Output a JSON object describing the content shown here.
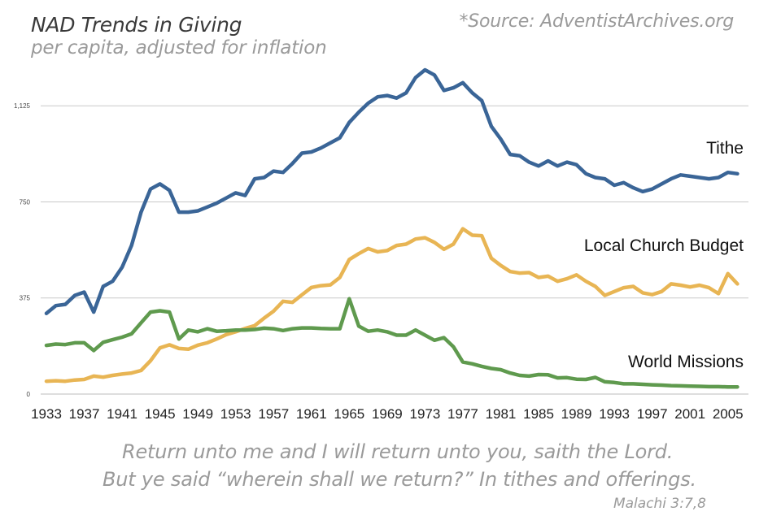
{
  "header": {
    "title": "NAD Trends in Giving",
    "subtitle": "per capita, adjusted for inflation",
    "source": "*Source: AdventistArchives.org"
  },
  "quote": {
    "line1": "Return unto me and I will return unto you, saith the Lord.",
    "line2": "But ye said “wherein shall we return?” In tithes and offerings.",
    "citation": "Malachi 3:7,8"
  },
  "colors": {
    "tithe": "#3a6597",
    "local": "#e8b554",
    "missions": "#5f9a4e",
    "grid": "#c9c9c9"
  },
  "chart_data": {
    "type": "line",
    "title": "NAD Trends in Giving",
    "subtitle": "per capita, adjusted for inflation",
    "xlabel": "",
    "ylabel": "",
    "xlim": [
      1933,
      2007
    ],
    "ylim": [
      0,
      1300
    ],
    "yticks": [
      0,
      375,
      750,
      1125
    ],
    "ytick_labels": [
      "0",
      "375",
      "750",
      "1,125"
    ],
    "xtick_labels": [
      "1933",
      "1937",
      "1941",
      "1945",
      "1949",
      "1953",
      "1957",
      "1961",
      "1965",
      "1969",
      "1973",
      "1977",
      "1981",
      "1985",
      "1989",
      "1993",
      "1997",
      "2001",
      "2005"
    ],
    "grid": true,
    "x": [
      1933,
      1934,
      1935,
      1936,
      1937,
      1938,
      1939,
      1940,
      1941,
      1942,
      1943,
      1944,
      1945,
      1946,
      1947,
      1948,
      1949,
      1950,
      1951,
      1952,
      1953,
      1954,
      1955,
      1956,
      1957,
      1958,
      1959,
      1960,
      1961,
      1962,
      1963,
      1964,
      1965,
      1966,
      1967,
      1968,
      1969,
      1970,
      1971,
      1972,
      1973,
      1974,
      1975,
      1976,
      1977,
      1978,
      1979,
      1980,
      1981,
      1982,
      1983,
      1984,
      1985,
      1986,
      1987,
      1988,
      1989,
      1990,
      1991,
      1992,
      1993,
      1994,
      1995,
      1996,
      1997,
      1998,
      1999,
      2000,
      2001,
      2002,
      2003,
      2004,
      2005,
      2006
    ],
    "series": [
      {
        "name": "Tithe",
        "values": [
          315,
          345,
          350,
          385,
          398,
          320,
          420,
          440,
          495,
          580,
          710,
          800,
          820,
          795,
          710,
          710,
          715,
          730,
          745,
          765,
          785,
          775,
          840,
          845,
          870,
          865,
          900,
          940,
          945,
          960,
          980,
          1000,
          1060,
          1100,
          1135,
          1160,
          1165,
          1155,
          1175,
          1235,
          1265,
          1245,
          1185,
          1195,
          1215,
          1175,
          1145,
          1045,
          995,
          935,
          930,
          905,
          890,
          910,
          890,
          905,
          895,
          860,
          845,
          840,
          815,
          825,
          805,
          790,
          800,
          820,
          840,
          855,
          850,
          845,
          840,
          845,
          865,
          860
        ]
      },
      {
        "name": "Local Church Budget",
        "values": [
          50,
          52,
          50,
          55,
          57,
          70,
          66,
          73,
          78,
          82,
          92,
          130,
          180,
          192,
          178,
          175,
          191,
          200,
          215,
          232,
          243,
          256,
          267,
          296,
          323,
          362,
          358,
          387,
          416,
          423,
          426,
          455,
          525,
          548,
          568,
          555,
          560,
          580,
          585,
          605,
          610,
          592,
          565,
          585,
          645,
          620,
          618,
          530,
          502,
          478,
          472,
          474,
          455,
          460,
          440,
          450,
          465,
          440,
          420,
          385,
          400,
          415,
          420,
          395,
          388,
          400,
          430,
          425,
          418,
          425,
          415,
          392,
          470,
          430
        ]
      },
      {
        "name": "World Missions",
        "values": [
          190,
          195,
          193,
          200,
          200,
          170,
          202,
          212,
          222,
          235,
          278,
          320,
          325,
          320,
          215,
          250,
          243,
          255,
          245,
          247,
          250,
          250,
          252,
          257,
          255,
          248,
          255,
          258,
          258,
          256,
          255,
          255,
          372,
          265,
          245,
          250,
          243,
          230,
          230,
          250,
          230,
          210,
          220,
          185,
          125,
          118,
          108,
          100,
          95,
          82,
          73,
          70,
          76,
          75,
          63,
          64,
          58,
          57,
          65,
          48,
          45,
          40,
          40,
          38,
          36,
          35,
          33,
          32,
          31,
          30,
          29,
          29,
          28,
          28
        ]
      }
    ],
    "series_labels": [
      "Tithe",
      "Local Church Budget",
      "World Missions"
    ]
  }
}
